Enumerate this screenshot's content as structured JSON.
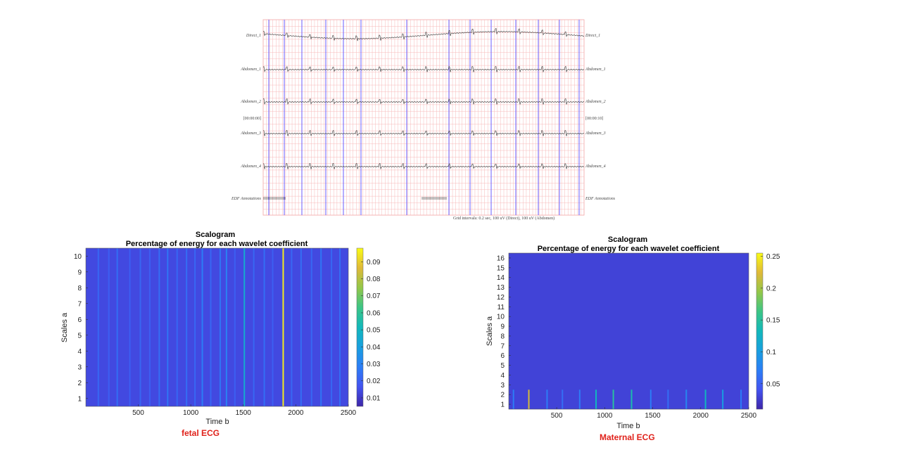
{
  "ecg_panel": {
    "channels": [
      {
        "left": "Direct_1",
        "right": "Direct_1"
      },
      {
        "left": "Abdomen_1",
        "right": "Abdomen_1"
      },
      {
        "left": "Abdomen_2",
        "right": "Abdomen_2"
      },
      {
        "left": "Abdomen_3",
        "right": "Abdomen_3"
      },
      {
        "left": "Abdomen_4",
        "right": "Abdomen_4"
      },
      {
        "left": "EDF Annotations",
        "right": "EDF Annotations"
      }
    ],
    "time_start": "[00:00:00]",
    "time_end": "[00:00:10]",
    "footer": "Grid intervals: 0.2 sec, 100 uV (Direct), 100 uV (Abdomen)"
  },
  "captions": {
    "left": "fetal ECG",
    "right": "Maternal ECG"
  },
  "chart_data": [
    {
      "type": "heatmap",
      "title": "Scalogram",
      "subtitle": "Percentage of energy for each wavelet coefficient",
      "xlabel": "Time b",
      "ylabel": "Scales a",
      "xlim": [
        1,
        2500
      ],
      "ylim": [
        0.5,
        10.5
      ],
      "xticks": [
        500,
        1000,
        1500,
        2000,
        2500
      ],
      "yticks": [
        1,
        2,
        3,
        4,
        5,
        6,
        7,
        8,
        9,
        10
      ],
      "colorbar": {
        "ticks": [
          0.01,
          0.02,
          0.03,
          0.04,
          0.05,
          0.06,
          0.07,
          0.08,
          0.09
        ],
        "min": 0.005,
        "max": 0.098
      },
      "base_value": 0.014,
      "stripes": [
        {
          "x": 120,
          "value": 0.022
        },
        {
          "x": 220,
          "value": 0.02
        },
        {
          "x": 300,
          "value": 0.024
        },
        {
          "x": 420,
          "value": 0.02
        },
        {
          "x": 520,
          "value": 0.022
        },
        {
          "x": 610,
          "value": 0.02
        },
        {
          "x": 700,
          "value": 0.024
        },
        {
          "x": 780,
          "value": 0.026
        },
        {
          "x": 870,
          "value": 0.022
        },
        {
          "x": 960,
          "value": 0.024
        },
        {
          "x": 1040,
          "value": 0.022
        },
        {
          "x": 1110,
          "value": 0.028
        },
        {
          "x": 1190,
          "value": 0.022
        },
        {
          "x": 1280,
          "value": 0.026
        },
        {
          "x": 1340,
          "value": 0.03
        },
        {
          "x": 1420,
          "value": 0.02
        },
        {
          "x": 1510,
          "value": 0.045
        },
        {
          "x": 1600,
          "value": 0.022
        },
        {
          "x": 1700,
          "value": 0.024
        },
        {
          "x": 1780,
          "value": 0.02
        },
        {
          "x": 1880,
          "value": 0.095
        },
        {
          "x": 1960,
          "value": 0.022
        },
        {
          "x": 2050,
          "value": 0.024
        },
        {
          "x": 2150,
          "value": 0.022
        },
        {
          "x": 2240,
          "value": 0.026
        },
        {
          "x": 2340,
          "value": 0.022
        },
        {
          "x": 2420,
          "value": 0.024
        }
      ]
    },
    {
      "type": "heatmap",
      "title": "Scalogram",
      "subtitle": "Percentage of energy for each wavelet coefficient",
      "xlabel": "Time b",
      "ylabel": "Scales a",
      "xlim": [
        1,
        2500
      ],
      "ylim": [
        0.5,
        16.5
      ],
      "xticks": [
        500,
        1000,
        1500,
        2000,
        2500
      ],
      "yticks": [
        1,
        2,
        3,
        4,
        5,
        6,
        7,
        8,
        9,
        10,
        11,
        12,
        13,
        14,
        15,
        16
      ],
      "colorbar": {
        "ticks": [
          0.05,
          0.1,
          0.15,
          0.2,
          0.25
        ],
        "min": 0.01,
        "max": 0.255
      },
      "base_value": 0.03,
      "stripes": [
        {
          "x": 50,
          "value": 0.07
        },
        {
          "x": 210,
          "value": 0.22
        },
        {
          "x": 400,
          "value": 0.07
        },
        {
          "x": 560,
          "value": 0.06
        },
        {
          "x": 740,
          "value": 0.07
        },
        {
          "x": 910,
          "value": 0.13
        },
        {
          "x": 1090,
          "value": 0.15
        },
        {
          "x": 1280,
          "value": 0.14
        },
        {
          "x": 1480,
          "value": 0.07
        },
        {
          "x": 1660,
          "value": 0.06
        },
        {
          "x": 1850,
          "value": 0.08
        },
        {
          "x": 2050,
          "value": 0.13
        },
        {
          "x": 2230,
          "value": 0.1
        },
        {
          "x": 2420,
          "value": 0.07
        }
      ]
    }
  ]
}
